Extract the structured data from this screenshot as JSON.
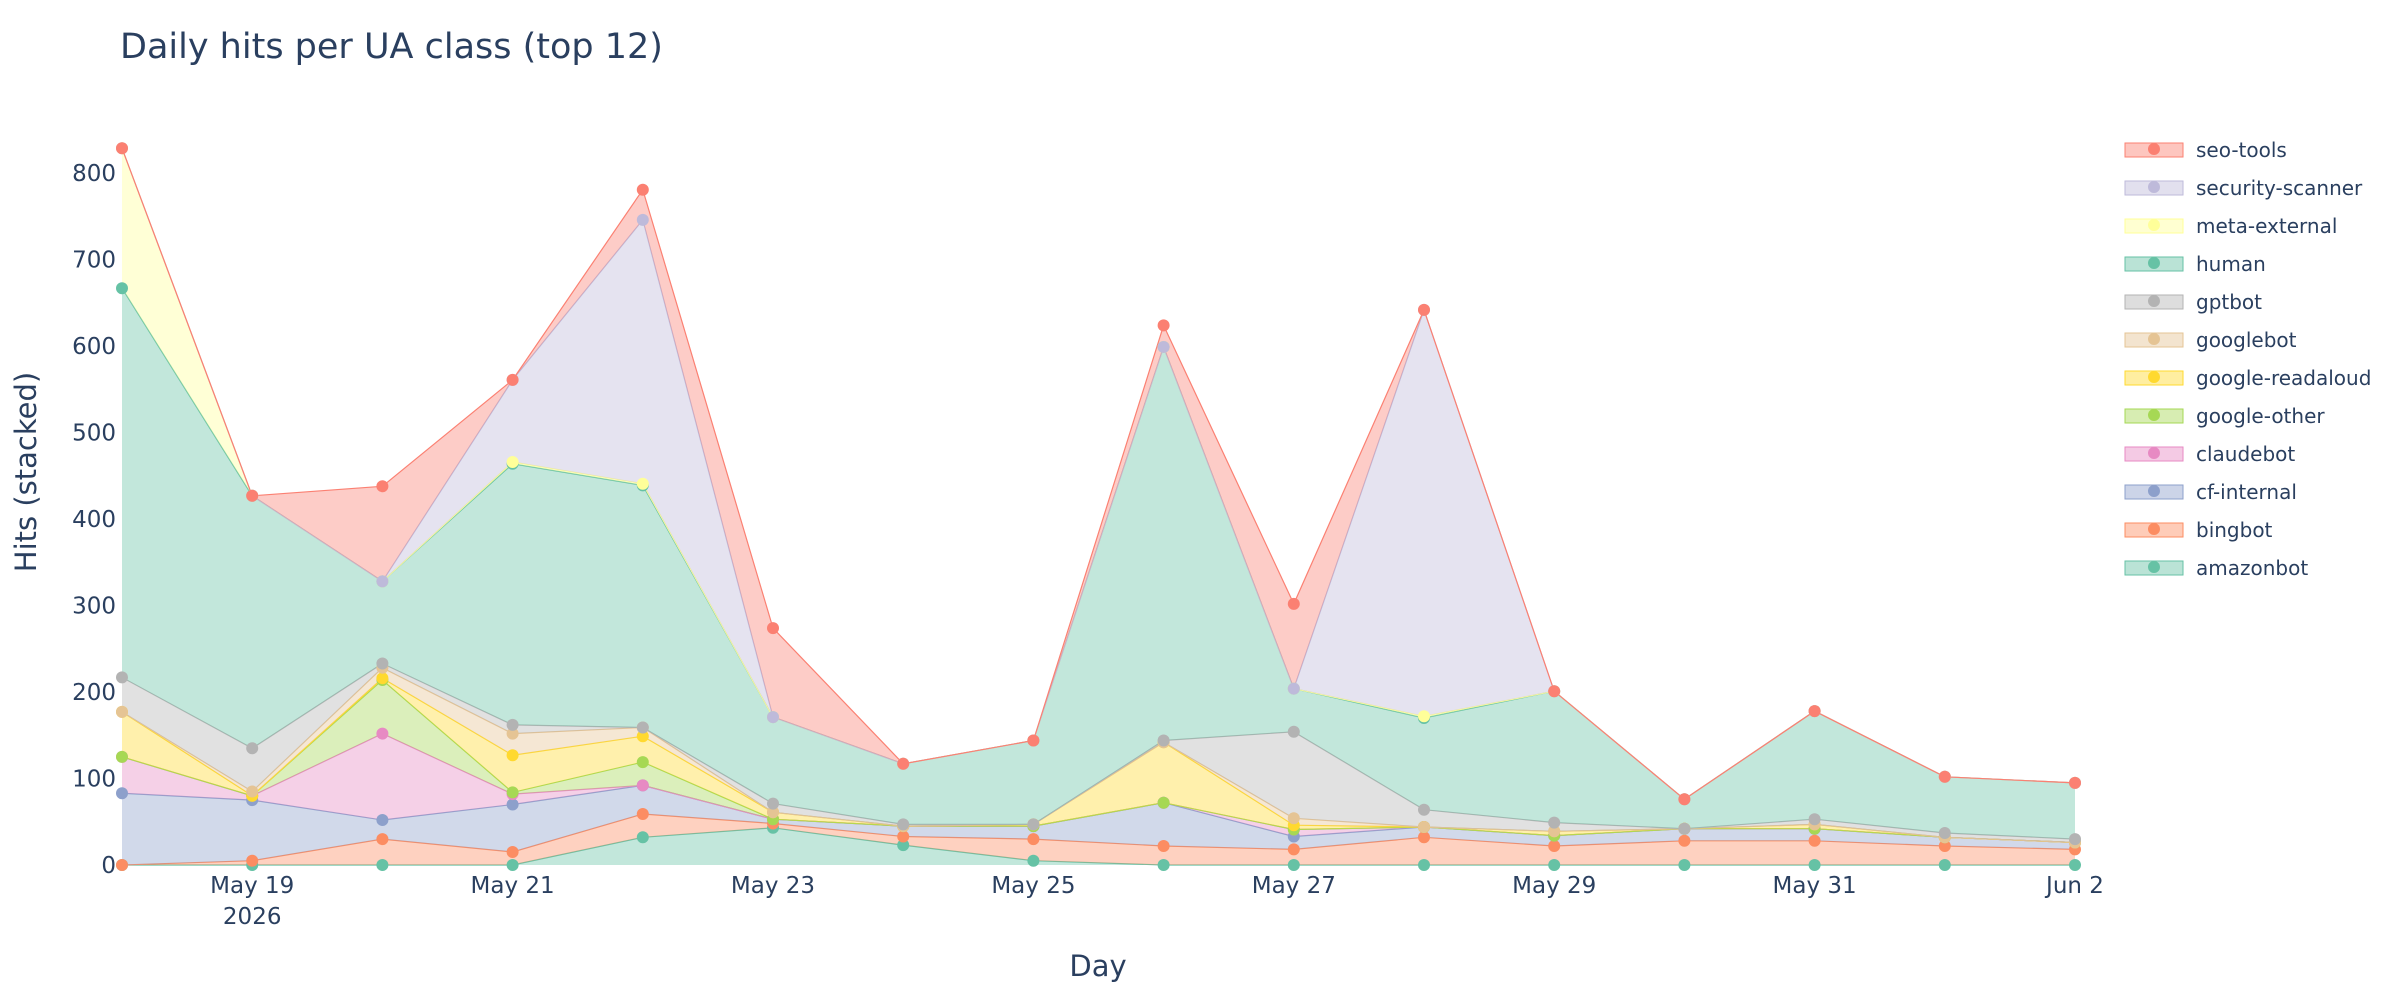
{
  "chart_data": {
    "type": "area",
    "stacked": true,
    "title": "Daily hits per UA class (top 12)",
    "xlabel": "Day",
    "ylabel": "Hits (stacked)",
    "x_axis_type": "date",
    "x": [
      "2026-05-18",
      "2026-05-19",
      "2026-05-20",
      "2026-05-21",
      "2026-05-22",
      "2026-05-23",
      "2026-05-24",
      "2026-05-25",
      "2026-05-26",
      "2026-05-27",
      "2026-05-28",
      "2026-05-29",
      "2026-05-30",
      "2026-05-31",
      "2026-06-01",
      "2026-06-02"
    ],
    "xlim": [
      "2026-05-18",
      "2026-06-02"
    ],
    "ylim": [
      0,
      850
    ],
    "x_ticks": [
      {
        "x": "2026-05-19",
        "label": "May 19",
        "sublabel": "2026"
      },
      {
        "x": "2026-05-21",
        "label": "May 21",
        "sublabel": ""
      },
      {
        "x": "2026-05-23",
        "label": "May 23",
        "sublabel": ""
      },
      {
        "x": "2026-05-25",
        "label": "May 25",
        "sublabel": ""
      },
      {
        "x": "2026-05-27",
        "label": "May 27",
        "sublabel": ""
      },
      {
        "x": "2026-05-29",
        "label": "May 29",
        "sublabel": ""
      },
      {
        "x": "2026-05-31",
        "label": "May 31",
        "sublabel": ""
      },
      {
        "x": "2026-06-02",
        "label": "Jun 2",
        "sublabel": ""
      }
    ],
    "y_ticks": [
      0,
      100,
      200,
      300,
      400,
      500,
      600,
      700,
      800
    ],
    "grid": false,
    "legend_position": "right",
    "series": [
      {
        "name": "amazonbot",
        "color": "#66c2a5",
        "values": [
          0,
          0,
          0,
          0,
          32,
          43,
          23,
          5,
          0,
          0,
          0,
          0,
          0,
          0,
          0,
          0
        ]
      },
      {
        "name": "bingbot",
        "color": "#fc8d62",
        "values": [
          0,
          5,
          30,
          15,
          27,
          5,
          10,
          25,
          22,
          18,
          32,
          22,
          28,
          28,
          22,
          18
        ]
      },
      {
        "name": "cf-internal",
        "color": "#8da0cb",
        "values": [
          83,
          70,
          22,
          55,
          33,
          5,
          12,
          15,
          50,
          15,
          12,
          12,
          14,
          14,
          10,
          8
        ]
      },
      {
        "name": "claudebot",
        "color": "#e78ac3",
        "values": [
          42,
          5,
          100,
          12,
          0,
          0,
          0,
          0,
          0,
          8,
          0,
          0,
          0,
          0,
          0,
          0
        ]
      },
      {
        "name": "google-other",
        "color": "#a6d854",
        "values": [
          0,
          0,
          62,
          2,
          27,
          0,
          0,
          0,
          0,
          0,
          0,
          0,
          0,
          0,
          0,
          0
        ]
      },
      {
        "name": "google-readaloud",
        "color": "#ffd92f",
        "values": [
          52,
          0,
          2,
          43,
          30,
          8,
          0,
          2,
          70,
          5,
          0,
          5,
          0,
          5,
          0,
          0
        ]
      },
      {
        "name": "googlebot",
        "color": "#e5c494",
        "values": [
          0,
          5,
          12,
          25,
          10,
          0,
          0,
          0,
          0,
          8,
          0,
          0,
          0,
          0,
          0,
          0
        ]
      },
      {
        "name": "gptbot",
        "color": "#b3b3b3",
        "values": [
          40,
          50,
          5,
          10,
          0,
          10,
          2,
          0,
          2,
          100,
          20,
          10,
          0,
          6,
          5,
          4
        ]
      },
      {
        "name": "human",
        "color": "#66c2a5",
        "values": [
          450,
          292,
          95,
          302,
          280,
          100,
          70,
          97,
          455,
          50,
          106,
          152,
          34,
          125,
          65,
          65
        ]
      },
      {
        "name": "meta-external",
        "color": "#ffff99",
        "values": [
          162,
          0,
          0,
          2,
          2,
          0,
          0,
          0,
          0,
          0,
          2,
          0,
          0,
          0,
          0,
          0
        ]
      },
      {
        "name": "security-scanner",
        "color": "#bebada",
        "values": [
          0,
          0,
          0,
          95,
          305,
          0,
          0,
          0,
          0,
          0,
          470,
          0,
          0,
          0,
          0,
          0
        ]
      },
      {
        "name": "seo-tools",
        "color": "#fb8072",
        "values": [
          0,
          0,
          110,
          0,
          35,
          103,
          0,
          0,
          25,
          98,
          0,
          0,
          0,
          0,
          0,
          0
        ]
      }
    ]
  }
}
